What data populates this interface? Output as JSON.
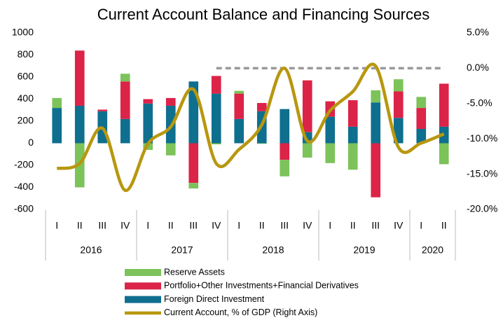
{
  "chart_data": {
    "type": "stacked_bar_line",
    "title": "Current Account Balance and Financing Sources",
    "categories": [
      "I",
      "II",
      "III",
      "IV",
      "I",
      "II",
      "III",
      "IV",
      "I",
      "II",
      "III",
      "IV",
      "I",
      "II",
      "III",
      "IV",
      "I",
      "II"
    ],
    "x_groups": [
      {
        "label": "2016",
        "span": 4
      },
      {
        "label": "2017",
        "span": 4
      },
      {
        "label": "2018",
        "span": 4
      },
      {
        "label": "2019",
        "span": 4
      },
      {
        "label": "2020",
        "span": 2
      }
    ],
    "ylim": [
      -600,
      1000
    ],
    "yticks": [
      -600,
      -400,
      -200,
      0,
      200,
      400,
      600,
      800,
      1000
    ],
    "y2lim": [
      -20,
      5
    ],
    "y2ticks": [
      {
        "value": -20,
        "label": "-20.0%"
      },
      {
        "value": -15,
        "label": "-15.0%"
      },
      {
        "value": -10,
        "label": "-10.0%"
      },
      {
        "value": -5,
        "label": "-5.0%"
      },
      {
        "value": 0,
        "label": "0.0%"
      },
      {
        "value": 5,
        "label": "5.0%"
      }
    ],
    "series": [
      {
        "name": "Foreign Direct Investment",
        "color": "#0e6f8e",
        "kind": "bar",
        "values": [
          320,
          340,
          290,
          220,
          360,
          340,
          560,
          450,
          220,
          290,
          310,
          100,
          240,
          150,
          370,
          230,
          130,
          150
        ]
      },
      {
        "name": "Portfolio+Other Investments+Financial Derivatives",
        "color": "#dc2348",
        "kind": "bar",
        "values": [
          0,
          500,
          15,
          340,
          40,
          70,
          -360,
          160,
          230,
          75,
          -150,
          470,
          140,
          240,
          -490,
          240,
          190,
          390
        ]
      },
      {
        "name": "Reserve Assets",
        "color": "#7cc35a",
        "kind": "bar",
        "values": [
          90,
          -400,
          0,
          70,
          -60,
          -110,
          -50,
          -10,
          25,
          -5,
          -150,
          -130,
          -180,
          -240,
          110,
          110,
          100,
          -190
        ]
      },
      {
        "name": "Current Account, % of GDP (Right Axis)",
        "color": "#b8970f",
        "kind": "line",
        "axis": "y2",
        "values": [
          -14.2,
          -13.5,
          -8.5,
          -17.3,
          -10.7,
          -8.3,
          -3,
          -13.5,
          -11.5,
          -8,
          0,
          -10.3,
          -6,
          -3.3,
          0.3,
          -11.2,
          -10.6,
          -9.3
        ]
      }
    ],
    "reference_line": {
      "y2": 0,
      "from": 7,
      "to": 17,
      "color": "#999999"
    }
  }
}
